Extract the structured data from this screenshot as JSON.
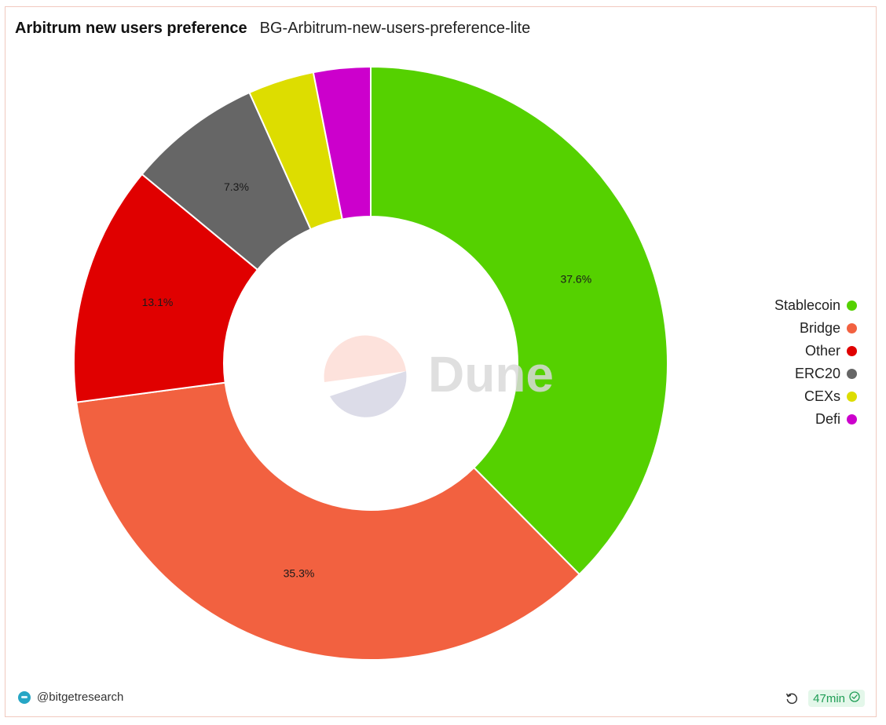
{
  "header": {
    "title": "Arbitrum new users preference",
    "subtitle": "BG-Arbitrum-new-users-preference-lite"
  },
  "watermark": {
    "text": "Dune"
  },
  "footer": {
    "author": "@bitgetresearch",
    "age": "47min",
    "refresh_icon": "refresh-icon",
    "check_icon": "check-circle-icon"
  },
  "colors": {
    "Stablecoin": "#55d100",
    "Bridge": "#f26140",
    "Other": "#e00000",
    "ERC20": "#666666",
    "CEXs": "#dddd00",
    "Defi": "#cc00cc",
    "badge_text": "#1f9d55"
  },
  "chart_data": {
    "type": "pie",
    "variant": "donut",
    "title": "Arbitrum new users preference",
    "legend_position": "right",
    "categories": [
      "Stablecoin",
      "Bridge",
      "Other",
      "ERC20",
      "CEXs",
      "Defi"
    ],
    "values": [
      37.6,
      35.3,
      13.1,
      7.3,
      3.6,
      3.1
    ],
    "data_labels": [
      "37.6%",
      "35.3%",
      "13.1%",
      "7.3%",
      "",
      ""
    ],
    "legend": [
      "Stablecoin",
      "Bridge",
      "Other",
      "ERC20",
      "CEXs",
      "Defi"
    ]
  }
}
